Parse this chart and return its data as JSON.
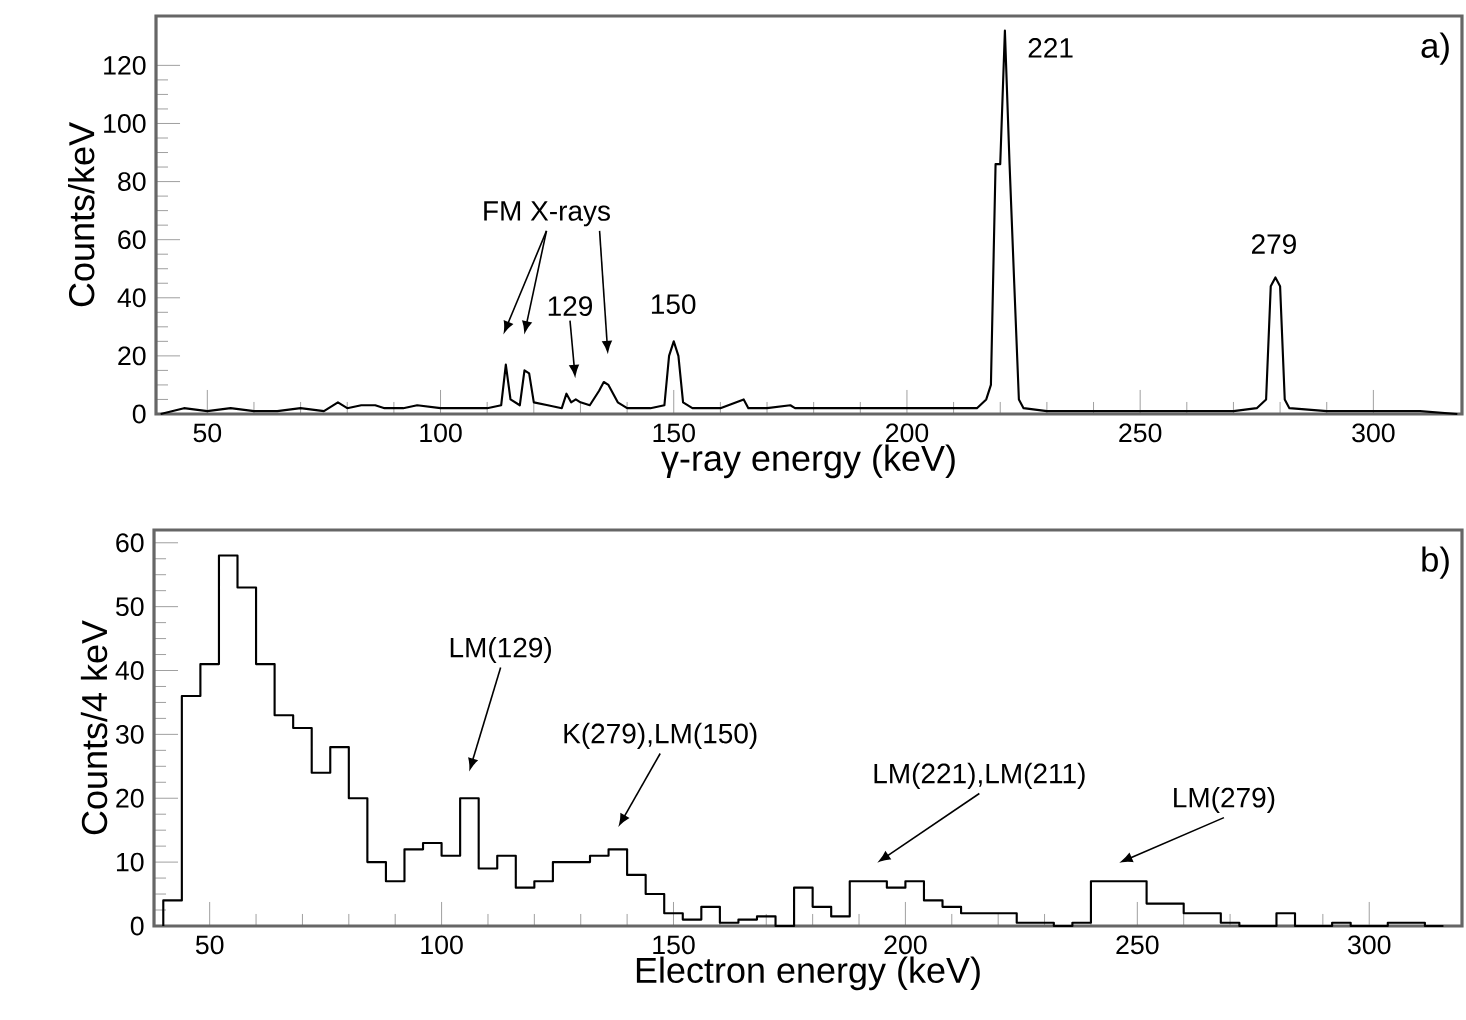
{
  "chart_data": [
    {
      "type": "line",
      "xlabel": "γ-ray energy (keV)",
      "ylabel": "Counts/keV",
      "color": "#000000",
      "x": [
        40,
        45,
        50,
        55,
        60,
        65,
        70,
        75,
        78,
        80,
        83,
        86,
        88,
        92,
        95,
        100,
        105,
        110,
        113,
        114,
        115,
        117,
        118,
        119,
        120,
        123,
        126,
        127,
        128,
        129,
        130,
        132,
        134,
        135,
        136,
        138,
        140,
        145,
        148,
        149,
        150,
        151,
        152,
        154,
        160,
        165,
        166,
        170,
        175,
        176,
        180,
        190,
        200,
        210,
        215,
        217,
        218,
        219,
        220,
        221,
        222,
        223,
        224,
        225,
        230,
        240,
        250,
        260,
        270,
        275,
        277,
        278,
        279,
        280,
        281,
        282,
        290,
        300,
        310,
        318
      ],
      "values": [
        0,
        2,
        1,
        2,
        1,
        1,
        2,
        1,
        4,
        2,
        3,
        3,
        2,
        2,
        3,
        2,
        2,
        2,
        3,
        17,
        5,
        3,
        15,
        14,
        4,
        3,
        2,
        7,
        4,
        5,
        4,
        3,
        8,
        11,
        10,
        4,
        2,
        2,
        3,
        20,
        25,
        20,
        4,
        2,
        2,
        5,
        2,
        2,
        3,
        2,
        2,
        2,
        2,
        2,
        2,
        5,
        10,
        86,
        86,
        132,
        86,
        45,
        5,
        2,
        1,
        1,
        1,
        1,
        1,
        2,
        5,
        44,
        47,
        44,
        5,
        2,
        1,
        1,
        1,
        0
      ],
      "xlim": [
        39,
        319
      ],
      "ylim": [
        0,
        137
      ],
      "xticks": [
        50,
        100,
        150,
        200,
        250,
        300
      ],
      "yticks": [
        0,
        20,
        40,
        60,
        80,
        100,
        120
      ],
      "annotations": [
        "FM X-rays",
        "129",
        "150",
        "221",
        "279",
        "a)"
      ]
    },
    {
      "type": "histogram",
      "xlabel": "Electron energy (keV)",
      "ylabel": "Counts/4 keV",
      "color": "#000000",
      "bins": [
        40,
        44,
        48,
        52,
        56,
        60,
        64,
        68,
        72,
        76,
        80,
        84,
        88,
        92,
        96,
        100,
        104,
        108,
        112,
        116,
        120,
        124,
        128,
        132,
        136,
        140,
        144,
        148,
        152,
        156,
        160,
        164,
        168,
        172,
        176,
        180,
        184,
        188,
        192,
        196,
        200,
        204,
        208,
        212,
        216,
        220,
        224,
        228,
        232,
        236,
        240,
        244,
        248,
        252,
        256,
        260,
        264,
        268,
        272,
        276,
        280,
        284,
        288,
        292,
        296,
        300,
        304,
        308,
        312,
        316
      ],
      "values": [
        4,
        36,
        41,
        58,
        53,
        41,
        33,
        31,
        24,
        28,
        20,
        10,
        7,
        12,
        13,
        11,
        20,
        9,
        11,
        6,
        7,
        10,
        10,
        11,
        12,
        8,
        5,
        2,
        1,
        3,
        0.5,
        1,
        1.5,
        0,
        6,
        3,
        1.5,
        7,
        7,
        6,
        7,
        4,
        3,
        2,
        2,
        2,
        0.5,
        0.5,
        0,
        0.5,
        7,
        7,
        7,
        3.5,
        3.5,
        2,
        2,
        0.5,
        0,
        0,
        2,
        0,
        0,
        0.5,
        0,
        0,
        0.5,
        0.5,
        0
      ],
      "xlim": [
        38,
        320
      ],
      "ylim": [
        0,
        62
      ],
      "xticks": [
        50,
        100,
        150,
        200,
        250,
        300
      ],
      "yticks": [
        0,
        10,
        20,
        30,
        40,
        50,
        60
      ],
      "annotations": [
        "LM(129)",
        "K(279),LM(150)",
        "LM(221),LM(211)",
        "LM(279)",
        "b)"
      ]
    }
  ]
}
